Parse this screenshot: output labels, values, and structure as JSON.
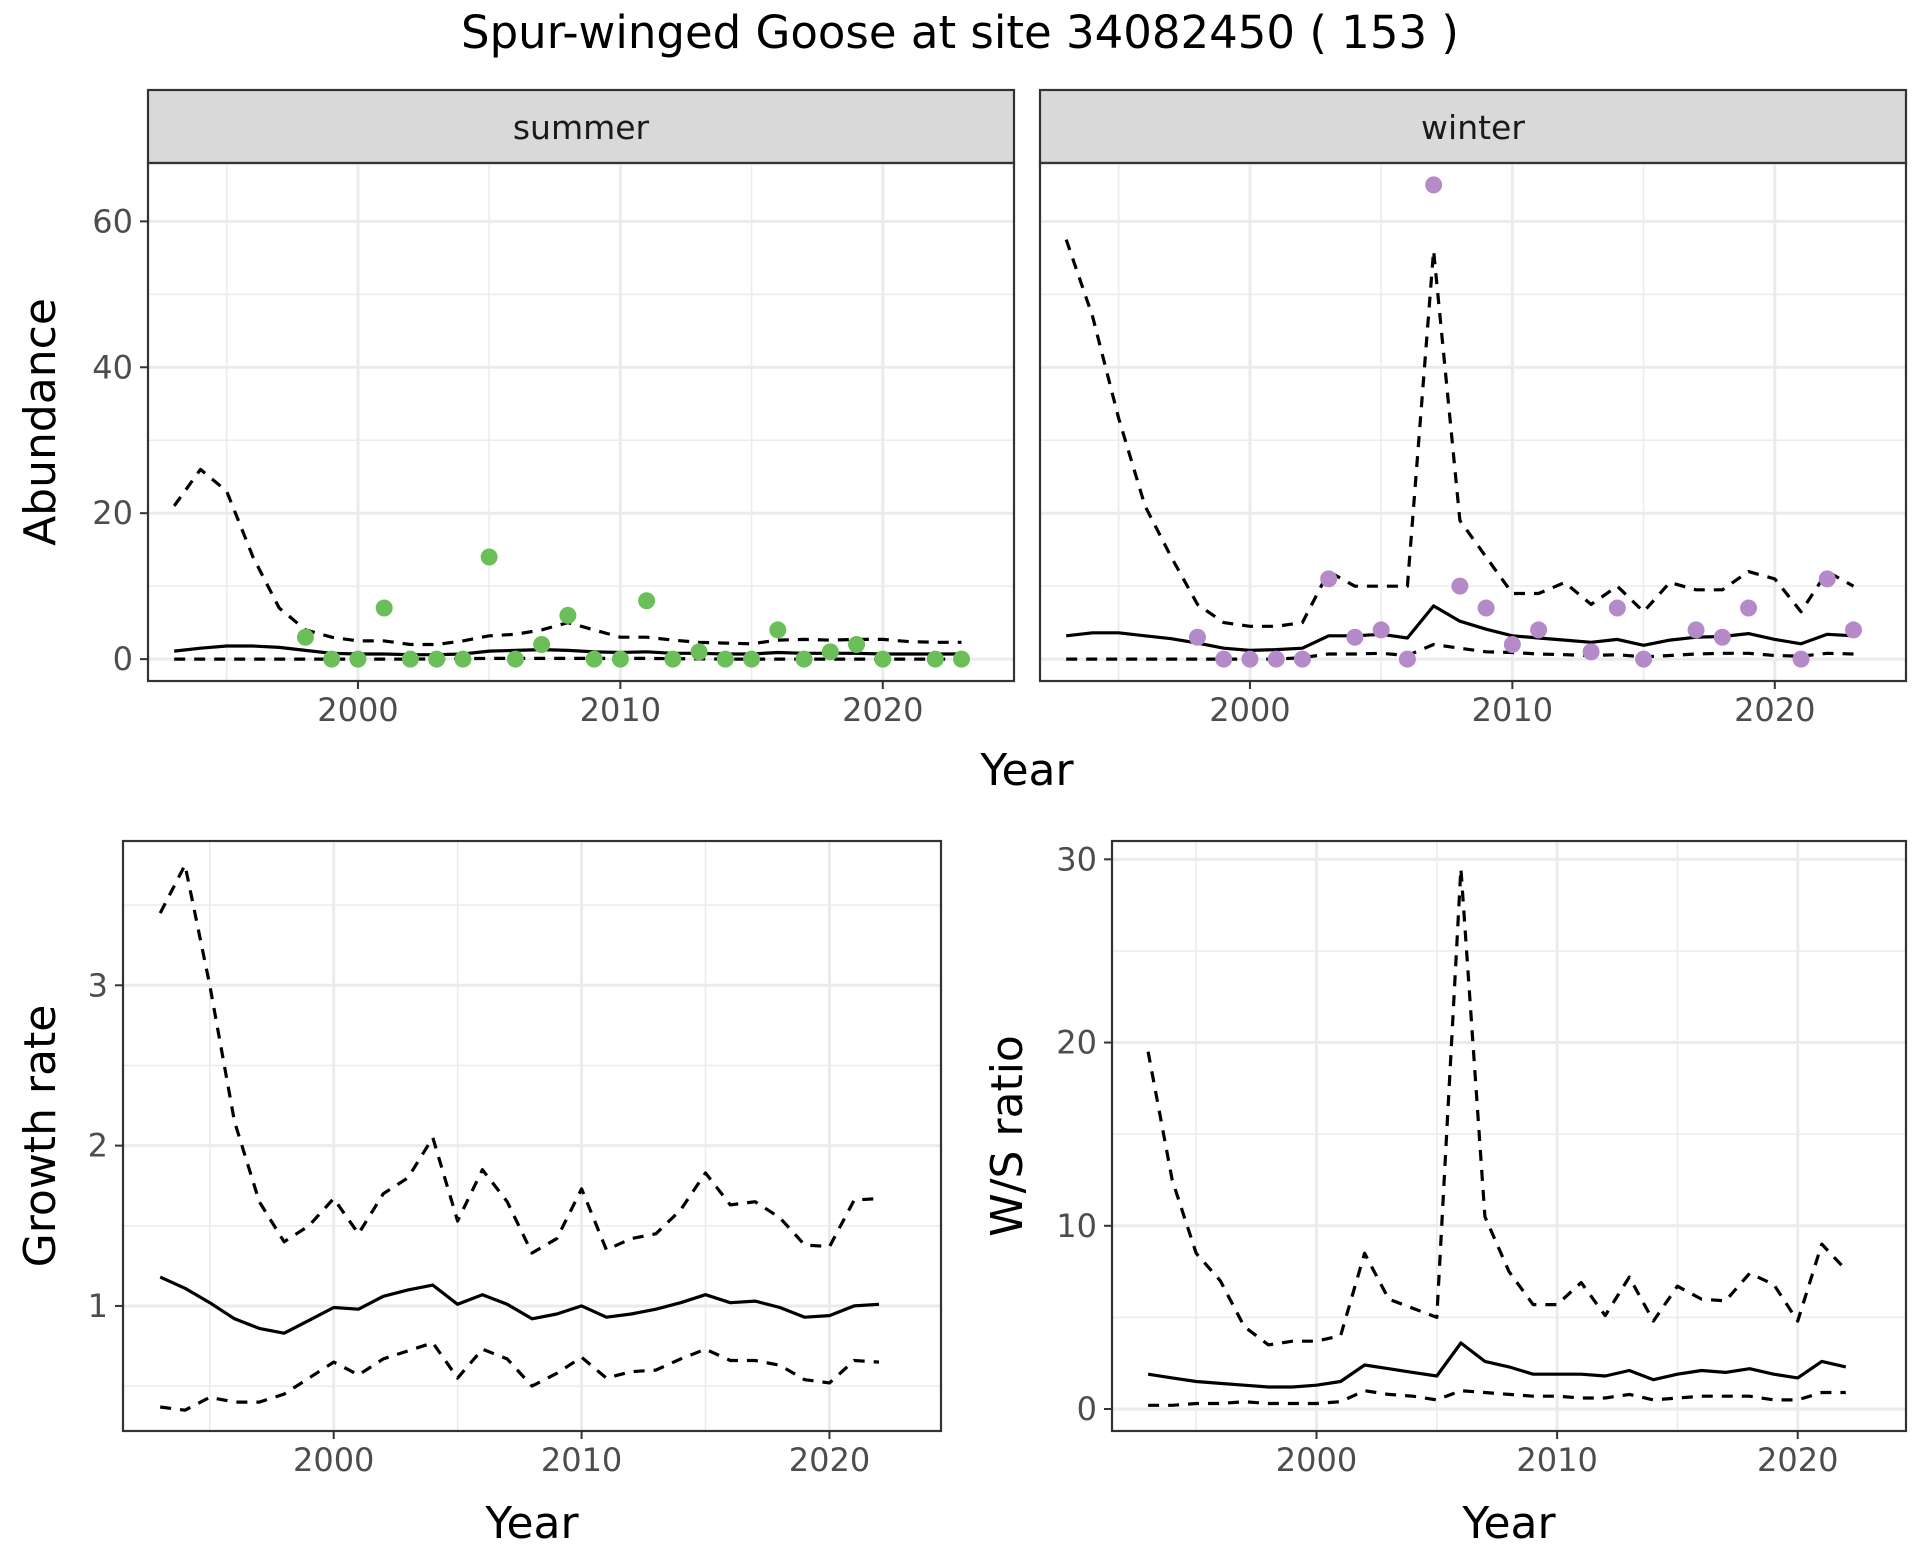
{
  "figure": {
    "title": "Spur-winged Goose at site 34082450 ( 153 )"
  },
  "colors": {
    "summer_points": "#6bbf59",
    "winter_points": "#b48ac9",
    "lines": "#000000",
    "strip_fill": "#d9d9d9",
    "grid": "#ebebeb"
  },
  "chart_data": [
    {
      "id": "abundance",
      "type": "scatter",
      "facets": [
        "summer",
        "winter"
      ],
      "xlabel": "Year",
      "ylabel": "Abundance",
      "xlim": [
        1992,
        2025
      ],
      "ylim": [
        -3,
        68
      ],
      "xticks": [
        2000,
        2010,
        2020
      ],
      "yticks": [
        0,
        20,
        40,
        60
      ],
      "grid": true,
      "panels": [
        {
          "facet": "summer",
          "points": {
            "x": [
              1998,
              1999,
              2000,
              2001,
              2002,
              2003,
              2004,
              2005,
              2006,
              2007,
              2008,
              2009,
              2010,
              2011,
              2012,
              2013,
              2014,
              2015,
              2016,
              2017,
              2018,
              2019,
              2020,
              2022,
              2023
            ],
            "y": [
              3,
              0,
              0,
              7,
              0,
              0,
              0,
              14,
              0,
              2,
              6,
              0,
              0,
              8,
              0,
              1,
              0,
              0,
              4,
              0,
              1,
              2,
              0,
              0,
              0
            ]
          },
          "series": [
            {
              "name": "",
              "style": "solid",
              "x": [
                1993,
                1994,
                1995,
                1996,
                1997,
                1998,
                1999,
                2000,
                2001,
                2002,
                2003,
                2004,
                2005,
                2006,
                2007,
                2008,
                2009,
                2010,
                2011,
                2012,
                2013,
                2014,
                2015,
                2016,
                2017,
                2018,
                2019,
                2020,
                2021,
                2022,
                2023
              ],
              "y": [
                1.1,
                1.5,
                1.8,
                1.8,
                1.6,
                1.2,
                0.8,
                0.7,
                0.7,
                0.6,
                0.6,
                0.7,
                1.1,
                1.2,
                1.3,
                1.2,
                1.0,
                0.9,
                1.0,
                0.8,
                0.8,
                0.7,
                0.7,
                0.9,
                0.8,
                0.8,
                0.8,
                0.7,
                0.7,
                0.7,
                0.7
              ]
            },
            {
              "name": "",
              "style": "dashed",
              "x": [
                1993,
                1994,
                1995,
                1996,
                1997,
                1998,
                1999,
                2000,
                2001,
                2002,
                2003,
                2004,
                2005,
                2006,
                2007,
                2008,
                2009,
                2010,
                2011,
                2012,
                2013,
                2014,
                2015,
                2016,
                2017,
                2018,
                2019,
                2020,
                2021,
                2022,
                2023
              ],
              "y": [
                21,
                26,
                23,
                14,
                7,
                4,
                3,
                2.5,
                2.5,
                2,
                2,
                2.5,
                3.2,
                3.4,
                4,
                5,
                4,
                3,
                3,
                2.6,
                2.3,
                2.2,
                2.1,
                2.6,
                2.7,
                2.6,
                2.7,
                2.7,
                2.4,
                2.3,
                2.3
              ]
            },
            {
              "name": "",
              "style": "dashed",
              "x": [
                1993,
                1996,
                1999,
                2002,
                2005,
                2008,
                2011,
                2014,
                2017,
                2020,
                2023
              ],
              "y": [
                0,
                0,
                0,
                0,
                0.1,
                0.1,
                0.1,
                0,
                0,
                0,
                0
              ]
            }
          ]
        },
        {
          "facet": "winter",
          "points": {
            "x": [
              1998,
              1999,
              2000,
              2001,
              2002,
              2003,
              2004,
              2005,
              2006,
              2007,
              2008,
              2009,
              2010,
              2011,
              2013,
              2014,
              2015,
              2017,
              2018,
              2019,
              2021,
              2022,
              2023
            ],
            "y": [
              3,
              0,
              0,
              0,
              0,
              11,
              3,
              4,
              0,
              65,
              10,
              7,
              2,
              4,
              1,
              7,
              0,
              4,
              3,
              7,
              0,
              11,
              4
            ]
          },
          "series": [
            {
              "name": "",
              "style": "solid",
              "x": [
                1993,
                1994,
                1995,
                1996,
                1997,
                1998,
                1999,
                2000,
                2001,
                2002,
                2003,
                2004,
                2005,
                2006,
                2007,
                2008,
                2009,
                2010,
                2011,
                2012,
                2013,
                2014,
                2015,
                2016,
                2017,
                2018,
                2019,
                2020,
                2021,
                2022,
                2023
              ],
              "y": [
                3.2,
                3.6,
                3.6,
                3.2,
                2.8,
                2.2,
                1.5,
                1.2,
                1.3,
                1.5,
                3.2,
                3.2,
                3.4,
                2.9,
                7.3,
                5.2,
                4.1,
                3.2,
                2.9,
                2.6,
                2.3,
                2.7,
                1.9,
                2.6,
                3.0,
                3.1,
                3.5,
                2.7,
                2.1,
                3.4,
                3.2
              ]
            },
            {
              "name": "",
              "style": "dashed",
              "x": [
                1993,
                1994,
                1995,
                1996,
                1997,
                1998,
                1999,
                2000,
                2001,
                2002,
                2003,
                2004,
                2005,
                2006,
                2007,
                2008,
                2009,
                2010,
                2011,
                2012,
                2013,
                2014,
                2015,
                2016,
                2017,
                2018,
                2019,
                2020,
                2021,
                2022,
                2023
              ],
              "y": [
                57.5,
                47,
                33,
                21,
                14,
                7.5,
                5,
                4.5,
                4.5,
                5,
                12,
                10,
                10,
                10,
                56,
                19,
                14,
                9,
                9,
                10.5,
                7.5,
                10,
                6.5,
                10.5,
                9.5,
                9.5,
                12,
                11,
                6.5,
                12,
                10
              ]
            },
            {
              "name": "",
              "style": "dashed",
              "x": [
                1993,
                1996,
                1999,
                2001,
                2002,
                2003,
                2004,
                2005,
                2006,
                2007,
                2008,
                2009,
                2010,
                2011,
                2012,
                2013,
                2014,
                2015,
                2016,
                2017,
                2018,
                2019,
                2020,
                2021,
                2022,
                2023
              ],
              "y": [
                0,
                0,
                0,
                0,
                0.2,
                0.7,
                0.7,
                0.8,
                0.5,
                2,
                1.5,
                1,
                0.9,
                0.7,
                0.6,
                0.5,
                0.6,
                0.3,
                0.5,
                0.7,
                0.8,
                0.8,
                0.5,
                0.4,
                0.8,
                0.7
              ]
            }
          ]
        }
      ]
    },
    {
      "id": "growth",
      "type": "line",
      "xlabel": "Year",
      "ylabel": "Growth rate",
      "xlim": [
        1991.5,
        2024.5
      ],
      "ylim": [
        0.22,
        3.9
      ],
      "xticks": [
        2000,
        2010,
        2020
      ],
      "yticks": [
        1,
        2,
        3
      ],
      "grid": true,
      "series": [
        {
          "name": "",
          "style": "dashed",
          "x": [
            1993,
            1994,
            1995,
            1996,
            1997,
            1998,
            1999,
            2000,
            2001,
            2002,
            2003,
            2004,
            2005,
            2006,
            2007,
            2008,
            2009,
            2010,
            2011,
            2012,
            2013,
            2014,
            2015,
            2016,
            2017,
            2018,
            2019,
            2020,
            2021,
            2022
          ],
          "y": [
            3.45,
            3.75,
            3.0,
            2.15,
            1.65,
            1.4,
            1.5,
            1.67,
            1.45,
            1.7,
            1.8,
            2.05,
            1.53,
            1.85,
            1.65,
            1.33,
            1.42,
            1.73,
            1.35,
            1.42,
            1.45,
            1.6,
            1.83,
            1.63,
            1.65,
            1.55,
            1.38,
            1.37,
            1.66,
            1.67
          ]
        },
        {
          "name": "",
          "style": "solid",
          "x": [
            1993,
            1994,
            1995,
            1996,
            1997,
            1998,
            1999,
            2000,
            2001,
            2002,
            2003,
            2004,
            2005,
            2006,
            2007,
            2008,
            2009,
            2010,
            2011,
            2012,
            2013,
            2014,
            2015,
            2016,
            2017,
            2018,
            2019,
            2020,
            2021,
            2022
          ],
          "y": [
            1.18,
            1.11,
            1.02,
            0.92,
            0.86,
            0.83,
            0.91,
            0.99,
            0.98,
            1.06,
            1.1,
            1.13,
            1.01,
            1.07,
            1.01,
            0.92,
            0.95,
            1.0,
            0.93,
            0.95,
            0.98,
            1.02,
            1.07,
            1.02,
            1.03,
            0.99,
            0.93,
            0.94,
            1.0,
            1.01
          ]
        },
        {
          "name": "",
          "style": "dashed",
          "x": [
            1993,
            1994,
            1995,
            1996,
            1997,
            1998,
            1999,
            2000,
            2001,
            2002,
            2003,
            2004,
            2005,
            2006,
            2007,
            2008,
            2009,
            2010,
            2011,
            2012,
            2013,
            2014,
            2015,
            2016,
            2017,
            2018,
            2019,
            2020,
            2021,
            2022
          ],
          "y": [
            0.37,
            0.35,
            0.43,
            0.4,
            0.4,
            0.45,
            0.55,
            0.65,
            0.57,
            0.67,
            0.72,
            0.77,
            0.55,
            0.73,
            0.67,
            0.5,
            0.58,
            0.68,
            0.55,
            0.59,
            0.6,
            0.67,
            0.73,
            0.66,
            0.66,
            0.63,
            0.54,
            0.52,
            0.66,
            0.65
          ]
        }
      ]
    },
    {
      "id": "ws_ratio",
      "type": "line",
      "xlabel": "Year",
      "ylabel": "W/S ratio",
      "xlim": [
        1991.5,
        2024.5
      ],
      "ylim": [
        -1.2,
        31.0
      ],
      "xticks": [
        2000,
        2010,
        2020
      ],
      "yticks": [
        0,
        10,
        20,
        30
      ],
      "grid": true,
      "series": [
        {
          "name": "",
          "style": "dashed",
          "x": [
            1993,
            1994,
            1995,
            1996,
            1997,
            1998,
            1999,
            2000,
            2001,
            2002,
            2003,
            2004,
            2005,
            2006,
            2007,
            2008,
            2009,
            2010,
            2011,
            2012,
            2013,
            2014,
            2015,
            2016,
            2017,
            2018,
            2019,
            2020,
            2021,
            2022
          ],
          "y": [
            19.5,
            12.5,
            8.5,
            7.0,
            4.5,
            3.5,
            3.7,
            3.7,
            4.0,
            8.5,
            6.0,
            5.5,
            5.0,
            29.5,
            10.5,
            7.5,
            5.7,
            5.7,
            6.9,
            5.1,
            7.2,
            4.8,
            6.7,
            6.0,
            5.9,
            7.4,
            6.8,
            4.8,
            9.0,
            7.6
          ]
        },
        {
          "name": "",
          "style": "solid",
          "x": [
            1993,
            1994,
            1995,
            1996,
            1997,
            1998,
            1999,
            2000,
            2001,
            2002,
            2003,
            2004,
            2005,
            2006,
            2007,
            2008,
            2009,
            2010,
            2011,
            2012,
            2013,
            2014,
            2015,
            2016,
            2017,
            2018,
            2019,
            2020,
            2021,
            2022
          ],
          "y": [
            1.9,
            1.7,
            1.5,
            1.4,
            1.3,
            1.2,
            1.2,
            1.3,
            1.5,
            2.4,
            2.2,
            2.0,
            1.8,
            3.6,
            2.6,
            2.3,
            1.9,
            1.9,
            1.9,
            1.8,
            2.1,
            1.6,
            1.9,
            2.1,
            2.0,
            2.2,
            1.9,
            1.7,
            2.6,
            2.3
          ]
        },
        {
          "name": "",
          "style": "dashed",
          "x": [
            1993,
            1994,
            1995,
            1996,
            1997,
            1998,
            1999,
            2000,
            2001,
            2002,
            2003,
            2004,
            2005,
            2006,
            2007,
            2008,
            2009,
            2010,
            2011,
            2012,
            2013,
            2014,
            2015,
            2016,
            2017,
            2018,
            2019,
            2020,
            2021,
            2022
          ],
          "y": [
            0.2,
            0.2,
            0.3,
            0.3,
            0.4,
            0.3,
            0.3,
            0.3,
            0.4,
            1.0,
            0.8,
            0.7,
            0.5,
            1.0,
            0.9,
            0.8,
            0.7,
            0.7,
            0.6,
            0.6,
            0.8,
            0.5,
            0.6,
            0.7,
            0.7,
            0.7,
            0.5,
            0.5,
            0.9,
            0.9
          ]
        }
      ]
    }
  ]
}
